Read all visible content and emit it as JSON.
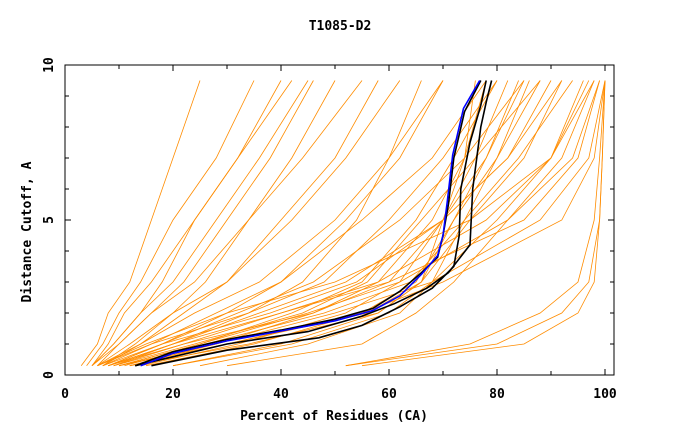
{
  "chart_data": {
    "type": "line",
    "title": "T1085-D2",
    "xlabel": "Percent of Residues (CA)",
    "ylabel": "Distance Cutoff, A",
    "xlim": [
      0,
      100
    ],
    "ylim": [
      0,
      10
    ],
    "xticks": [
      "0",
      "20",
      "40",
      "60",
      "80",
      "100"
    ],
    "yticks": [
      "0",
      "5",
      "10"
    ],
    "grid": false,
    "colors": {
      "background_models": "#ff8c00",
      "highlight_blue": "#0000ff",
      "highlight_black": "#000000"
    },
    "cutoffs": [
      0.3,
      1,
      2,
      3,
      5,
      7,
      9.5
    ],
    "background_series": [
      [
        3,
        6,
        8,
        12,
        16,
        20,
        25
      ],
      [
        4,
        7,
        10,
        14,
        20,
        28,
        35
      ],
      [
        5,
        8,
        11,
        16,
        24,
        32,
        40
      ],
      [
        5,
        9,
        14,
        20,
        28,
        36,
        45
      ],
      [
        6,
        10,
        16,
        24,
        34,
        44,
        55
      ],
      [
        6,
        12,
        20,
        30,
        42,
        52,
        62
      ],
      [
        7,
        14,
        24,
        36,
        50,
        60,
        70
      ],
      [
        7,
        16,
        28,
        40,
        55,
        68,
        78
      ],
      [
        8,
        18,
        32,
        46,
        62,
        74,
        85
      ],
      [
        8,
        20,
        36,
        52,
        70,
        82,
        92
      ],
      [
        9,
        22,
        40,
        58,
        78,
        90,
        97
      ],
      [
        10,
        25,
        45,
        62,
        82,
        94,
        99
      ],
      [
        6,
        15,
        30,
        50,
        75,
        90,
        98
      ],
      [
        8,
        20,
        40,
        60,
        85,
        95,
        99
      ],
      [
        10,
        28,
        50,
        68,
        88,
        97,
        100
      ],
      [
        12,
        30,
        55,
        70,
        92,
        98,
        100
      ],
      [
        52,
        75,
        88,
        95,
        98,
        99,
        100
      ],
      [
        52,
        80,
        92,
        97,
        99,
        99.5,
        100
      ],
      [
        55,
        85,
        95,
        98,
        99,
        99.5,
        100
      ],
      [
        25,
        45,
        62,
        68,
        80,
        90,
        96
      ],
      [
        20,
        40,
        58,
        66,
        75,
        85,
        92
      ],
      [
        15,
        35,
        55,
        65,
        72,
        78,
        85
      ],
      [
        10,
        25,
        42,
        55,
        65,
        72,
        80
      ],
      [
        8,
        18,
        30,
        40,
        52,
        62,
        70
      ],
      [
        6,
        14,
        22,
        30,
        40,
        50,
        58
      ],
      [
        5,
        10,
        16,
        22,
        30,
        38,
        46
      ],
      [
        9,
        20,
        34,
        44,
        54,
        60,
        66
      ],
      [
        12,
        28,
        46,
        58,
        68,
        74,
        78
      ],
      [
        14,
        32,
        52,
        62,
        70,
        76,
        82
      ],
      [
        7,
        13,
        20,
        26,
        34,
        42,
        50
      ],
      [
        5,
        9,
        14,
        18,
        24,
        32,
        42
      ],
      [
        9,
        24,
        44,
        56,
        66,
        76,
        88
      ],
      [
        11,
        26,
        48,
        64,
        74,
        84,
        94
      ],
      [
        6,
        16,
        34,
        48,
        60,
        70,
        80
      ],
      [
        7,
        18,
        38,
        54,
        70,
        82,
        90
      ],
      [
        10,
        30,
        56,
        66,
        72,
        80,
        88
      ],
      [
        8,
        22,
        46,
        60,
        70,
        78,
        84
      ],
      [
        20,
        42,
        60,
        68,
        74,
        80,
        86
      ],
      [
        30,
        55,
        65,
        72,
        82,
        92,
        98
      ],
      [
        12,
        34,
        58,
        66,
        70,
        74,
        76
      ]
    ],
    "highlight_series": [
      {
        "color": "black",
        "points": [
          [
            13,
            0.3
          ],
          [
            20,
            0.75
          ],
          [
            30,
            1.15
          ],
          [
            40,
            1.45
          ],
          [
            50,
            1.8
          ],
          [
            57,
            2.15
          ],
          [
            62,
            2.7
          ],
          [
            66,
            3.3
          ],
          [
            69,
            3.8
          ],
          [
            70,
            4.5
          ],
          [
            71,
            5.5
          ],
          [
            72,
            7
          ],
          [
            74,
            8.5
          ],
          [
            77,
            9.5
          ]
        ]
      },
      {
        "color": "black",
        "points": [
          [
            16,
            0.3
          ],
          [
            30,
            0.8
          ],
          [
            47,
            1.2
          ],
          [
            55,
            1.6
          ],
          [
            62,
            2.2
          ],
          [
            68,
            2.8
          ],
          [
            72,
            3.5
          ],
          [
            73,
            4.5
          ],
          [
            73.3,
            6
          ],
          [
            75,
            7.5
          ],
          [
            77,
            8.7
          ],
          [
            78,
            9.5
          ]
        ]
      },
      {
        "color": "black",
        "points": [
          [
            13,
            0.3
          ],
          [
            30,
            1.0
          ],
          [
            45,
            1.4
          ],
          [
            55,
            1.9
          ],
          [
            61,
            2.3
          ],
          [
            67,
            2.8
          ],
          [
            71,
            3.3
          ],
          [
            75,
            4.2
          ],
          [
            75.5,
            6
          ],
          [
            77,
            8
          ],
          [
            78,
            8.8
          ],
          [
            79,
            9.5
          ]
        ]
      },
      {
        "color": "blue",
        "points": [
          [
            14,
            0.3
          ],
          [
            20,
            0.7
          ],
          [
            30,
            1.1
          ],
          [
            40,
            1.42
          ],
          [
            50,
            1.75
          ],
          [
            57,
            2.08
          ],
          [
            62,
            2.55
          ],
          [
            66,
            3.25
          ],
          [
            69,
            3.85
          ],
          [
            70,
            4.5
          ],
          [
            70.8,
            5.6
          ],
          [
            71.8,
            7.1
          ],
          [
            73.8,
            8.6
          ],
          [
            76.8,
            9.5
          ]
        ]
      }
    ]
  }
}
